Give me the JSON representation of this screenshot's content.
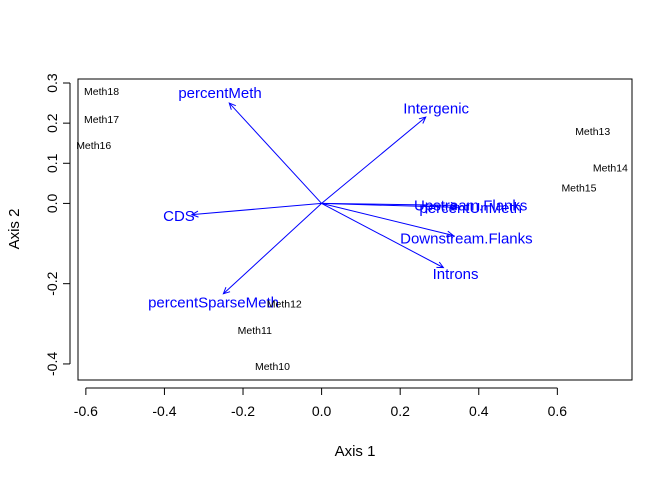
{
  "chart_data": {
    "type": "scatter",
    "xlabel": "Axis 1",
    "ylabel": "Axis 2",
    "xlim": [
      -0.62,
      0.79
    ],
    "ylim": [
      -0.44,
      0.31
    ],
    "xticks": [
      -0.6,
      -0.4,
      -0.2,
      0.0,
      0.2,
      0.4,
      0.6
    ],
    "xtick_labels": [
      "-0.6",
      "-0.4",
      "-0.2",
      "0.0",
      "0.2",
      "0.4",
      "0.6"
    ],
    "yticks": [
      -0.4,
      -0.2,
      0.0,
      0.1,
      0.2,
      0.3
    ],
    "ytick_labels": [
      "-0.4",
      "-0.2",
      "0.0",
      "0.1",
      "0.2",
      "0.3"
    ],
    "grid": false,
    "points": [
      {
        "label": "Meth18",
        "x": -0.56,
        "y": 0.28
      },
      {
        "label": "Meth17",
        "x": -0.56,
        "y": 0.21
      },
      {
        "label": "Meth16",
        "x": -0.58,
        "y": 0.145
      },
      {
        "label": "Meth13",
        "x": 0.69,
        "y": 0.18
      },
      {
        "label": "Meth14",
        "x": 0.735,
        "y": 0.09
      },
      {
        "label": "Meth15",
        "x": 0.655,
        "y": 0.04
      },
      {
        "label": "Meth12",
        "x": -0.095,
        "y": -0.25
      },
      {
        "label": "Meth11",
        "x": -0.17,
        "y": -0.315
      },
      {
        "label": "Meth10",
        "x": -0.125,
        "y": -0.405
      }
    ],
    "vectors": [
      {
        "label": "percentMeth",
        "x": -0.235,
        "y": 0.25
      },
      {
        "label": "Intergenic",
        "x": 0.265,
        "y": 0.215
      },
      {
        "label": "Upstream.Flanks",
        "x": 0.345,
        "y": -0.005
      },
      {
        "label": "percentUnMeth",
        "x": 0.345,
        "y": -0.01
      },
      {
        "label": "Downstream.Flanks",
        "x": 0.335,
        "y": -0.08
      },
      {
        "label": "Introns",
        "x": 0.31,
        "y": -0.16
      },
      {
        "label": "CDS",
        "x": -0.33,
        "y": -0.028
      },
      {
        "label": "percentSparseMeth",
        "x": -0.25,
        "y": -0.225
      }
    ],
    "colors": {
      "points": "#000000",
      "vectors": "#0000ff"
    }
  }
}
